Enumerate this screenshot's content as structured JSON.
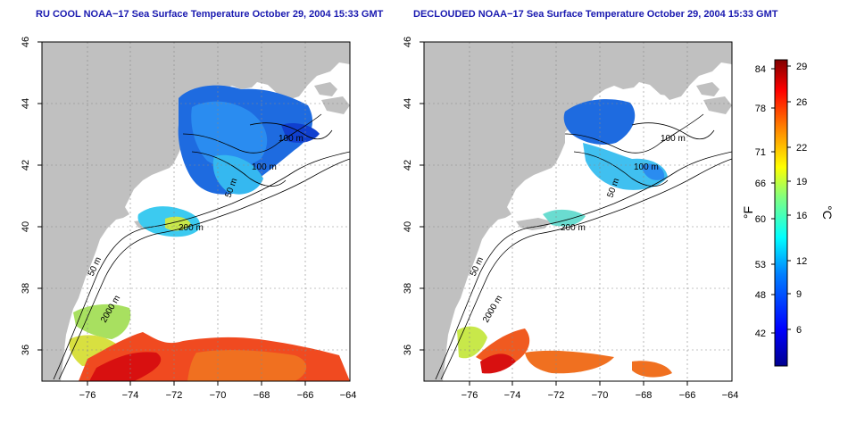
{
  "maps": [
    {
      "title": "RU COOL NOAA−17 Sea Surface Temperature October 29, 2004 15:33 GMT",
      "lon_ticks": [
        "−76",
        "−74",
        "−72",
        "−70",
        "−68",
        "−66",
        "−64"
      ],
      "lat_ticks": [
        "46",
        "44",
        "42",
        "40",
        "38",
        "36"
      ],
      "contour_labels": [
        "100 m",
        "100 m",
        "50 m",
        "200 m",
        "50 m",
        "2000 m"
      ]
    },
    {
      "title": "DECLOUDED NOAA−17 Sea Surface Temperature October 29, 2004 15:33 GMT",
      "lon_ticks": [
        "−76",
        "−74",
        "−72",
        "−70",
        "−68",
        "−66",
        "−64"
      ],
      "lat_ticks": [
        "46",
        "44",
        "42",
        "40",
        "38",
        "36"
      ],
      "contour_labels": [
        "100 m",
        "100 m",
        "50 m",
        "200 m",
        "50 m",
        "2000 m"
      ]
    }
  ],
  "colorbar": {
    "fahrenheit_label": "°F",
    "celsius_label": "°C",
    "fahrenheit_ticks": [
      "84",
      "78",
      "71",
      "66",
      "60",
      "53",
      "48",
      "42"
    ],
    "celsius_ticks": [
      "29",
      "26",
      "22",
      "19",
      "16",
      "12",
      "9",
      "6"
    ],
    "colors": [
      "#00008f",
      "#0000ff",
      "#0080ff",
      "#00ffff",
      "#80ff80",
      "#ffff00",
      "#ff8000",
      "#ff0000",
      "#800000"
    ]
  },
  "colors": {
    "land": "#c0c0c0",
    "ocean_nodata": "#ffffff",
    "title_color": "#1a1ab0"
  }
}
